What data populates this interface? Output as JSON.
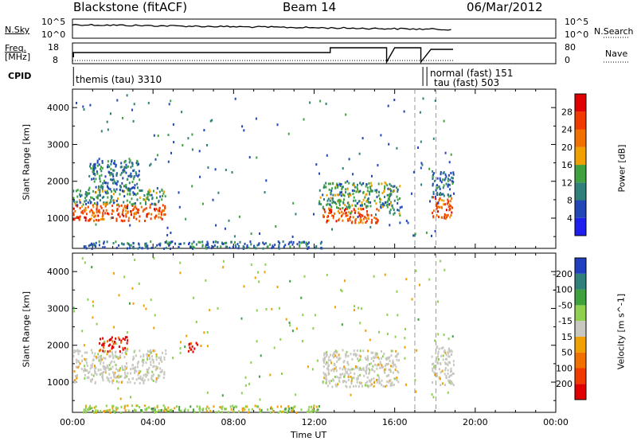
{
  "header": {
    "station": "Blackstone (fitACF)",
    "beam": "Beam 14",
    "date": "06/Mar/2012"
  },
  "left_labels": {
    "nsky": "N.Sky",
    "freq_line1": "Freq.",
    "freq_line2": "[MHz]",
    "cpid": "CPID"
  },
  "right_labels": {
    "nsearch": "N.Search",
    "nave": "Nave"
  },
  "ticks": {
    "nsky_top": "10^5",
    "nsky_bottom": "10^0",
    "freq_top": "18",
    "freq_bottom": "8",
    "nsearch_top": "10^5",
    "nsearch_bottom": "10^0",
    "nave_top": "80",
    "nave_bottom": "0"
  },
  "cpid_annotations": [
    {
      "text": "themis (tau) 3310"
    },
    {
      "text": "normal (fast) 151"
    },
    {
      "text": "tau (fast) 503"
    }
  ],
  "chart_data": [
    {
      "type": "heatmap",
      "name": "power-panel",
      "ylabel": "Slant Range [km]",
      "xlabel": "",
      "y_ticks": [
        "1000",
        "2000",
        "3000",
        "4000"
      ],
      "ylim": [
        180,
        4500
      ],
      "xlim": [
        0,
        24
      ],
      "colorbar": {
        "label": "Power [dB]",
        "ticks": [
          "4",
          "8",
          "12",
          "16",
          "20",
          "24",
          "28"
        ],
        "colors": [
          "#1f1ff0",
          "#2147b8",
          "#2f7f7a",
          "#3fa23f",
          "#f0a000",
          "#f07000",
          "#f03a00",
          "#e00000"
        ]
      },
      "bands": [
        {
          "t": [
            0.0,
            4.6
          ],
          "r": [
            950,
            1400
          ],
          "level": "high"
        },
        {
          "t": [
            0.0,
            4.6
          ],
          "r": [
            1400,
            1800
          ],
          "level": "mid"
        },
        {
          "t": [
            0.8,
            3.3
          ],
          "r": [
            1800,
            2600
          ],
          "level": "low"
        },
        {
          "t": [
            12.4,
            15.2
          ],
          "r": [
            900,
            1300
          ],
          "level": "high"
        },
        {
          "t": [
            12.2,
            15.8
          ],
          "r": [
            1300,
            2000
          ],
          "level": "mid"
        },
        {
          "t": [
            15.6,
            16.3
          ],
          "r": [
            1100,
            1900
          ],
          "level": "mid"
        },
        {
          "t": [
            17.8,
            18.9
          ],
          "r": [
            1000,
            1600
          ],
          "level": "high"
        },
        {
          "t": [
            17.8,
            18.9
          ],
          "r": [
            1600,
            2300
          ],
          "level": "low"
        },
        {
          "t": [
            0.5,
            12.5
          ],
          "r": [
            200,
            400
          ],
          "level": "low"
        }
      ]
    },
    {
      "type": "heatmap",
      "name": "velocity-panel",
      "ylabel": "Slant Range [km]",
      "xlabel": "Time UT",
      "y_ticks": [
        "1000",
        "2000",
        "3000",
        "4000"
      ],
      "ylim": [
        180,
        4500
      ],
      "xlim": [
        0,
        24
      ],
      "x_ticks": [
        "00:00",
        "04:00",
        "08:00",
        "12:00",
        "16:00",
        "20:00",
        "00:00"
      ],
      "colorbar": {
        "label": "Velocity [m s^-1]",
        "ticks": [
          "200",
          "100",
          "50",
          "15",
          "-15",
          "-50",
          "-100",
          "-200"
        ],
        "colors": [
          "#2040c0",
          "#2f7f7a",
          "#3fa23f",
          "#8fd050",
          "#c8c8c0",
          "#f0a000",
          "#f07000",
          "#f03a00",
          "#e00000"
        ]
      },
      "bands": [
        {
          "t": [
            0.0,
            4.6
          ],
          "r": [
            1000,
            1900
          ],
          "level": "grey"
        },
        {
          "t": [
            1.3,
            2.7
          ],
          "r": [
            1850,
            2250
          ],
          "level": "red"
        },
        {
          "t": [
            5.6,
            6.2
          ],
          "r": [
            1850,
            2100
          ],
          "level": "red"
        },
        {
          "t": [
            12.4,
            16.2
          ],
          "r": [
            900,
            1900
          ],
          "level": "grey"
        },
        {
          "t": [
            17.8,
            18.9
          ],
          "r": [
            950,
            2000
          ],
          "level": "grey"
        },
        {
          "t": [
            0.5,
            12.5
          ],
          "r": [
            200,
            400
          ],
          "level": "green"
        }
      ]
    }
  ]
}
